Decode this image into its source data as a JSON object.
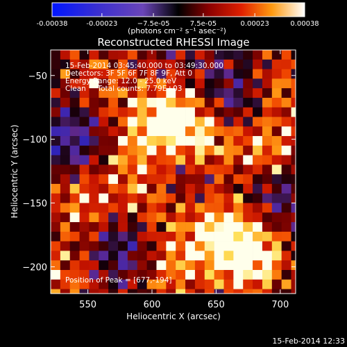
{
  "chart_data": {
    "type": "heatmap",
    "title": "Reconstructed RHESSI Image",
    "xlabel": "Heliocentric X (arcsec)",
    "ylabel": "Heliocentric Y (arcsec)",
    "xlim": [
      521,
      712
    ],
    "ylim": [
      -221,
      -30
    ],
    "xticks": [
      550,
      600,
      650,
      700
    ],
    "yticks": [
      -50,
      -100,
      -150,
      -200
    ],
    "colorbar": {
      "min": -0.00038,
      "max": 0.00038,
      "ticks": [
        -0.00038,
        -0.00023,
        -7.5e-05,
        7.5e-05,
        0.00023,
        0.00038
      ],
      "tick_labels": [
        "-0.00038",
        "-0.00023",
        "−7.5e-05",
        "7.5e-05",
        "0.00023",
        "0.00038"
      ],
      "unit_label": "(photons cm⁻² s⁻¹ asec⁻²)",
      "colormap": "hot-with-blue-negative"
    },
    "annotations": [
      "15-Feb-2014 03:45:40.000 to 03:49:30.000",
      "Detectors: 3F 5F 6F 7F 8F 9F, Att 0",
      "Energy Range: 12.0 - 25.0 keV",
      "Clean     Total counts: 7.79E+03"
    ],
    "peak_label": "Position of Peak = [677,-194]",
    "peak": [
      677,
      -194
    ],
    "bright_sources": [
      {
        "x": 613,
        "y": -82,
        "intensity": 0.9
      },
      {
        "x": 677,
        "y": -194,
        "intensity": 1.0
      },
      {
        "x": 655,
        "y": -170,
        "intensity": 0.85
      },
      {
        "x": 640,
        "y": -100,
        "intensity": 0.7
      },
      {
        "x": 690,
        "y": -110,
        "intensity": 0.75
      },
      {
        "x": 545,
        "y": -150,
        "intensity": 0.6
      },
      {
        "x": 600,
        "y": -150,
        "intensity": 0.55
      },
      {
        "x": 560,
        "y": -55,
        "intensity": 0.5
      },
      {
        "x": 615,
        "y": -200,
        "intensity": 0.7
      },
      {
        "x": 700,
        "y": -60,
        "intensity": 0.55
      },
      {
        "x": 530,
        "y": -210,
        "intensity": 0.55
      },
      {
        "x": 585,
        "y": -110,
        "intensity": 0.6
      }
    ],
    "dark_sources": [
      {
        "x": 540,
        "y": -100,
        "intensity": -0.6
      },
      {
        "x": 665,
        "y": -70,
        "intensity": -0.5
      },
      {
        "x": 580,
        "y": -185,
        "intensity": -0.55
      },
      {
        "x": 695,
        "y": -140,
        "intensity": -0.45
      },
      {
        "x": 620,
        "y": -130,
        "intensity": -0.35
      }
    ]
  },
  "footer": {
    "timestamp": "15-Feb-2014 12:33"
  }
}
